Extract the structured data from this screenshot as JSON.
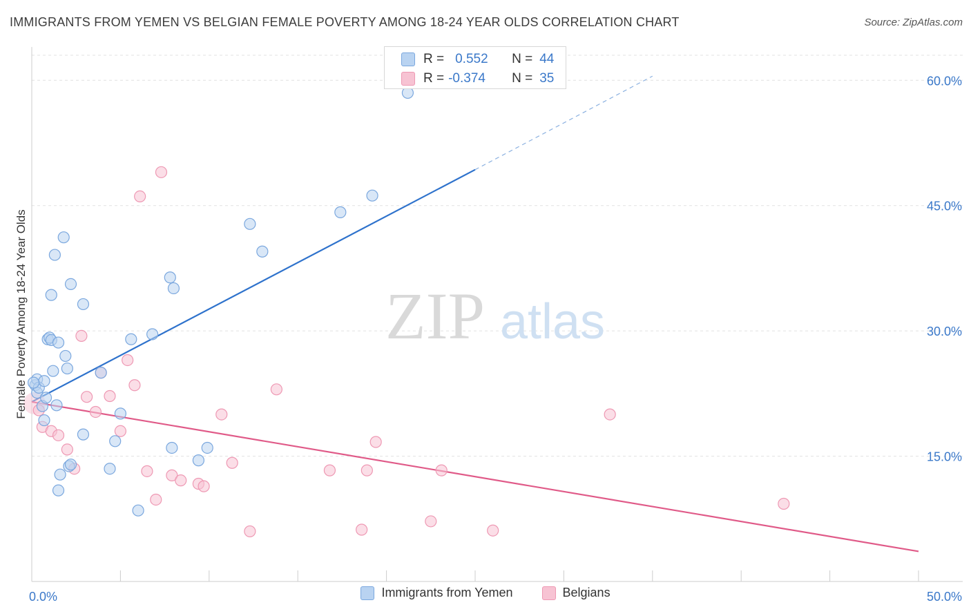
{
  "title": "IMMIGRANTS FROM YEMEN VS BELGIAN FEMALE POVERTY AMONG 18-24 YEAR OLDS CORRELATION CHART",
  "source": "Source: ZipAtlas.com",
  "watermark": {
    "zip": "ZIP",
    "atlas": "atlas"
  },
  "stats_box": {
    "rows": [
      {
        "r_label": "R =",
        "r_value": "0.552",
        "n_label": "N =",
        "n_value": "44"
      },
      {
        "r_label": "R =",
        "r_value": "-0.374",
        "n_label": "N =",
        "n_value": "35"
      }
    ]
  },
  "legend": {
    "items": [
      "Immigrants from Yemen",
      "Belgians"
    ]
  },
  "colors": {
    "blue_fill": "#b9d3f1",
    "blue_stroke": "#7aa7de",
    "blue_line": "#2e72cc",
    "pink_fill": "#f7c3d3",
    "pink_stroke": "#ee98b3",
    "pink_line": "#e05a88",
    "axis_label": "#3a78c9",
    "grid": "#e1e1e1"
  },
  "chart_data": {
    "type": "scatter",
    "title": "IMMIGRANTS FROM YEMEN VS BELGIAN FEMALE POVERTY AMONG 18-24 YEAR OLDS CORRELATION CHART",
    "xlabel": "",
    "ylabel": "Female Poverty Among 18-24 Year Olds",
    "xlim": [
      0,
      50
    ],
    "ylim": [
      0,
      63
    ],
    "x_tick_labels": [
      {
        "value": 0,
        "label": "0.0%"
      },
      {
        "value": 50,
        "label": "50.0%"
      }
    ],
    "y_ticks": [
      {
        "value": 15,
        "label": "15.0%"
      },
      {
        "value": 30,
        "label": "30.0%"
      },
      {
        "value": 45,
        "label": "45.0%"
      },
      {
        "value": 60,
        "label": "60.0%"
      }
    ],
    "grid": true,
    "legend_position": "bottom",
    "series": [
      {
        "name": "Immigrants from Yemen",
        "r": 0.552,
        "n": 44,
        "points": [
          [
            0.2,
            23.5
          ],
          [
            0.3,
            24.2
          ],
          [
            0.3,
            22.6
          ],
          [
            0.4,
            23.2
          ],
          [
            0.6,
            21.0
          ],
          [
            0.7,
            24.0
          ],
          [
            0.7,
            19.3
          ],
          [
            0.8,
            22.0
          ],
          [
            0.9,
            29.0
          ],
          [
            1.0,
            29.2
          ],
          [
            1.1,
            28.9
          ],
          [
            1.1,
            34.3
          ],
          [
            1.2,
            25.2
          ],
          [
            1.3,
            39.1
          ],
          [
            1.4,
            21.1
          ],
          [
            1.5,
            28.6
          ],
          [
            1.5,
            10.9
          ],
          [
            1.6,
            12.8
          ],
          [
            1.8,
            41.2
          ],
          [
            1.9,
            27.0
          ],
          [
            2.0,
            25.5
          ],
          [
            2.1,
            13.8
          ],
          [
            2.2,
            14.0
          ],
          [
            2.2,
            35.6
          ],
          [
            2.9,
            33.2
          ],
          [
            2.9,
            17.6
          ],
          [
            3.9,
            25.0
          ],
          [
            4.4,
            13.5
          ],
          [
            4.7,
            16.8
          ],
          [
            5.0,
            20.1
          ],
          [
            5.6,
            29.0
          ],
          [
            6.0,
            8.5
          ],
          [
            6.8,
            29.6
          ],
          [
            7.8,
            36.4
          ],
          [
            7.9,
            16.0
          ],
          [
            8.0,
            35.1
          ],
          [
            9.4,
            14.5
          ],
          [
            9.9,
            16.0
          ],
          [
            12.3,
            42.8
          ],
          [
            13.0,
            39.5
          ],
          [
            17.4,
            44.2
          ],
          [
            19.2,
            46.2
          ],
          [
            21.2,
            58.5
          ],
          [
            0.1,
            23.8
          ]
        ],
        "trend": {
          "x": [
            0,
            25
          ],
          "y": [
            21.5,
            49.3
          ],
          "dashed_extension": {
            "x": [
              25,
              35
            ],
            "y": [
              49.3,
              60.5
            ]
          }
        }
      },
      {
        "name": "Belgians",
        "r": -0.374,
        "n": 35,
        "points": [
          [
            0.4,
            20.5
          ],
          [
            0.6,
            18.5
          ],
          [
            1.1,
            18.0
          ],
          [
            1.5,
            17.5
          ],
          [
            2.0,
            15.8
          ],
          [
            2.4,
            13.5
          ],
          [
            2.8,
            29.4
          ],
          [
            3.1,
            22.1
          ],
          [
            3.6,
            20.3
          ],
          [
            3.9,
            25.0
          ],
          [
            4.4,
            22.2
          ],
          [
            5.0,
            18.0
          ],
          [
            5.4,
            26.5
          ],
          [
            5.8,
            23.5
          ],
          [
            6.1,
            46.1
          ],
          [
            6.5,
            13.2
          ],
          [
            7.0,
            9.8
          ],
          [
            7.3,
            49.0
          ],
          [
            7.9,
            12.7
          ],
          [
            8.4,
            12.1
          ],
          [
            9.4,
            11.7
          ],
          [
            9.7,
            11.4
          ],
          [
            10.7,
            20.0
          ],
          [
            11.3,
            14.2
          ],
          [
            12.3,
            6.0
          ],
          [
            13.8,
            23.0
          ],
          [
            16.8,
            13.3
          ],
          [
            18.6,
            6.2
          ],
          [
            18.9,
            13.3
          ],
          [
            19.4,
            16.7
          ],
          [
            22.5,
            7.2
          ],
          [
            23.1,
            13.3
          ],
          [
            26.0,
            6.1
          ],
          [
            32.6,
            20.0
          ],
          [
            42.4,
            9.3
          ]
        ],
        "trend": {
          "x": [
            0,
            50
          ],
          "y": [
            21.5,
            3.6
          ]
        }
      }
    ]
  }
}
